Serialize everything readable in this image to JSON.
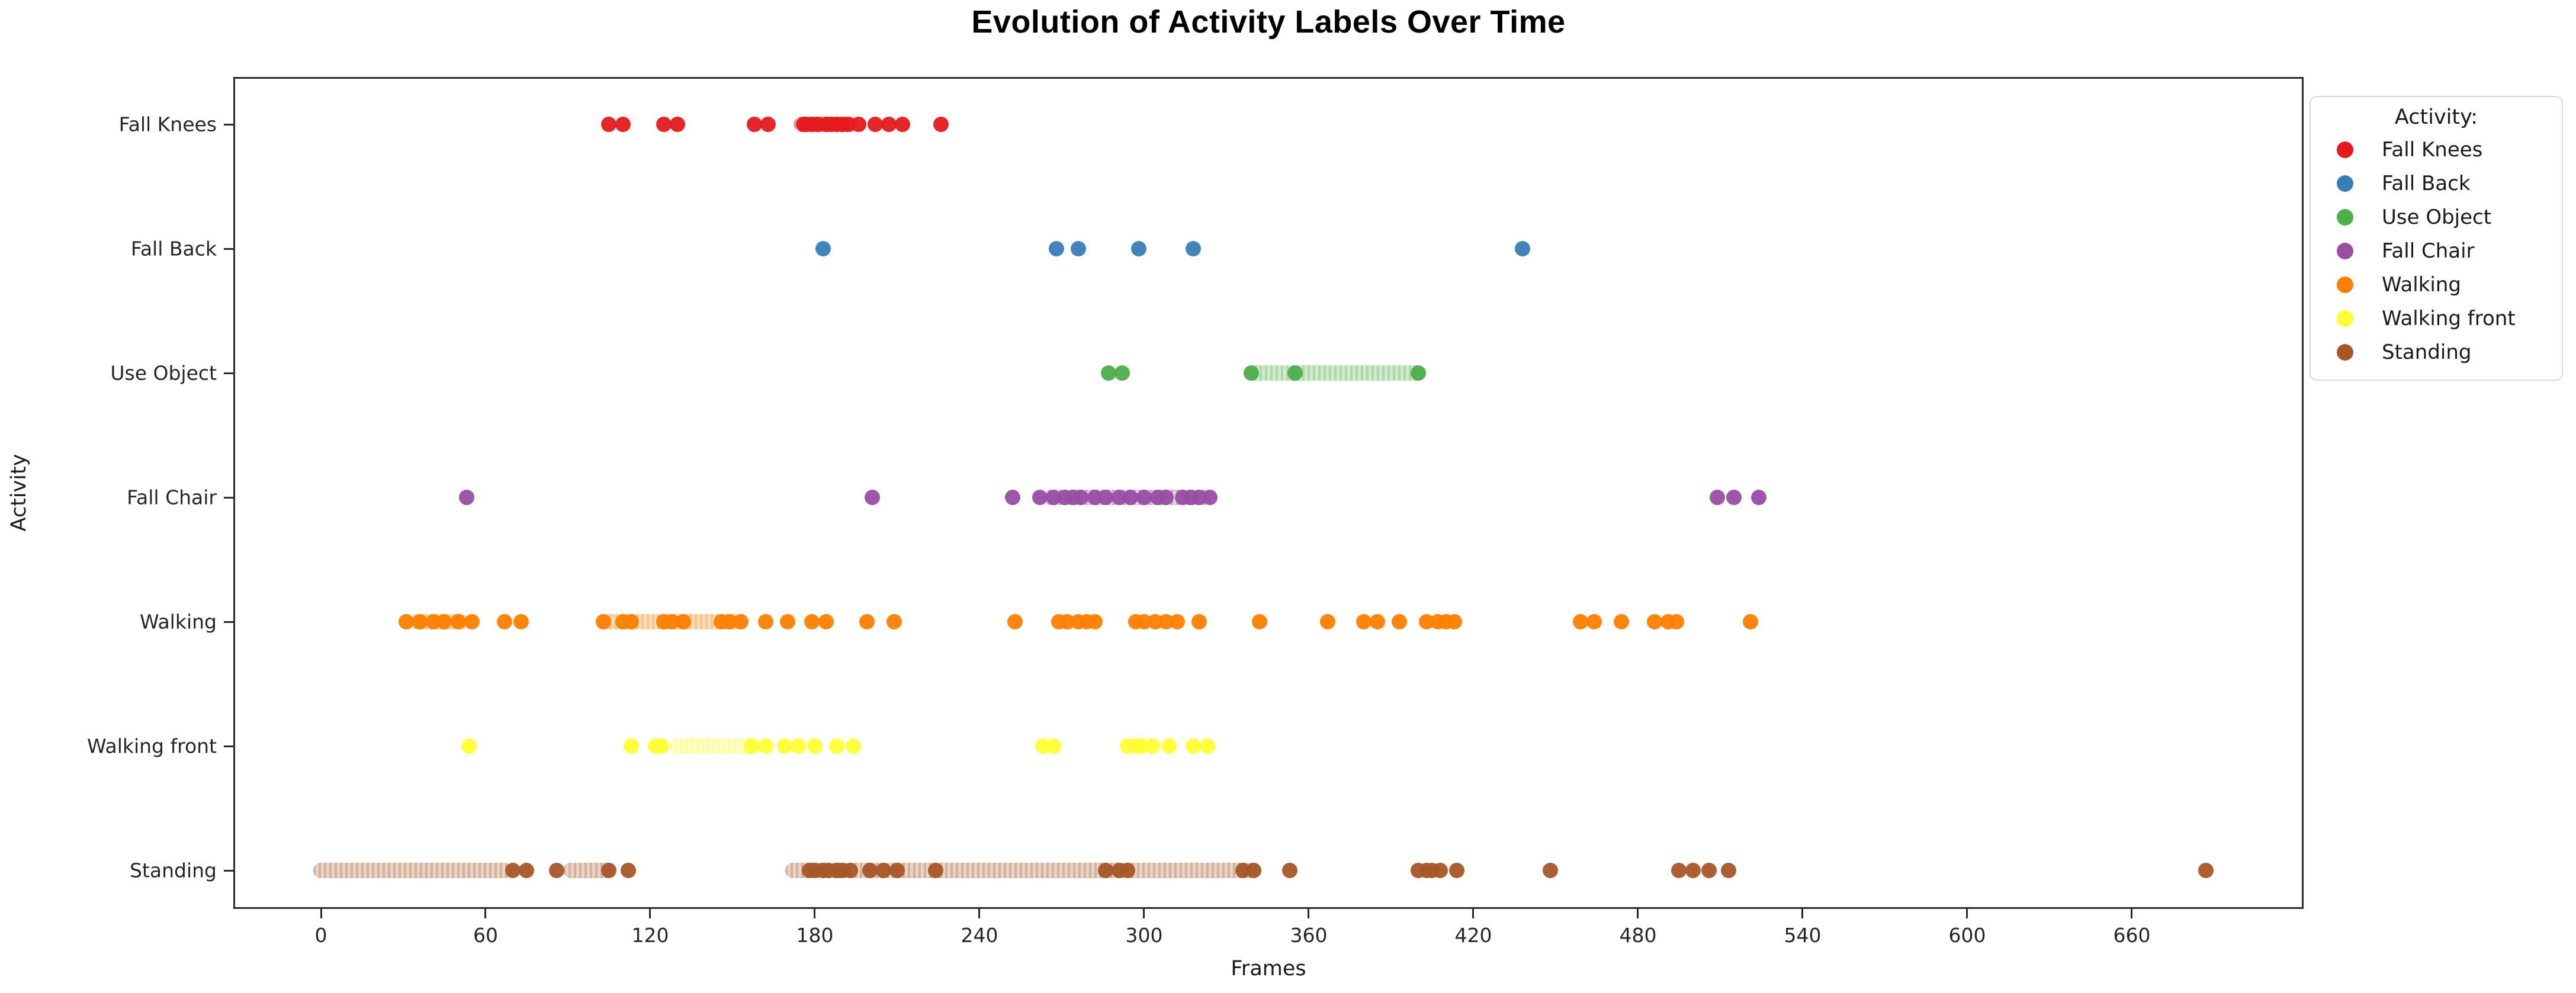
{
  "title": "Evolution of Activity Labels Over Time",
  "x_axis": {
    "label": "Frames",
    "ticks": [
      0,
      60,
      120,
      180,
      240,
      300,
      360,
      420,
      480,
      540,
      600,
      660
    ]
  },
  "y_axis": {
    "label": "Activity",
    "categories": [
      "Fall Knees",
      "Fall Back",
      "Use Object",
      "Fall Chair",
      "Walking",
      "Walking front",
      "Standing"
    ]
  },
  "legend": {
    "title": "Activity:",
    "items": [
      {
        "label": "Fall Knees",
        "color": "#e41a1c"
      },
      {
        "label": "Fall Back",
        "color": "#377eb8"
      },
      {
        "label": "Use Object",
        "color": "#4daf4a"
      },
      {
        "label": "Fall Chair",
        "color": "#984ea3"
      },
      {
        "label": "Walking",
        "color": "#ff7f00"
      },
      {
        "label": "Walking front",
        "color": "#ffff33"
      },
      {
        "label": "Standing",
        "color": "#a65628"
      }
    ]
  },
  "chart_data": {
    "type": "scatter",
    "title": "Evolution of Activity Labels Over Time",
    "xlabel": "Frames",
    "ylabel": "Activity",
    "xlim": [
      -35,
      725
    ],
    "grid": true,
    "legend_position": "upper right outside",
    "x_ticks": [
      0,
      60,
      120,
      180,
      240,
      300,
      360,
      420,
      480,
      540,
      600,
      660
    ],
    "categories_top_to_bottom": [
      "Fall Knees",
      "Fall Back",
      "Use Object",
      "Fall Chair",
      "Walking",
      "Walking front",
      "Standing"
    ],
    "series": [
      {
        "name": "Fall Knees",
        "color": "#e41a1c",
        "row": 0,
        "points": [
          105,
          110,
          125,
          130,
          158,
          163,
          176,
          177,
          179,
          181,
          184,
          186,
          188,
          190,
          192,
          196,
          202,
          207,
          212,
          226
        ],
        "runs": [
          [
            175,
            193
          ]
        ]
      },
      {
        "name": "Fall Back",
        "color": "#377eb8",
        "row": 1,
        "points": [
          183,
          268,
          276,
          298,
          318,
          438
        ],
        "runs": []
      },
      {
        "name": "Use Object",
        "color": "#4daf4a",
        "row": 2,
        "points": [
          287,
          292,
          339,
          355,
          400
        ],
        "runs": [
          [
            339,
            400
          ]
        ]
      },
      {
        "name": "Fall Chair",
        "color": "#984ea3",
        "row": 3,
        "points": [
          53,
          201,
          252,
          262,
          267,
          271,
          274,
          277,
          282,
          286,
          291,
          295,
          300,
          305,
          308,
          314,
          317,
          320,
          324,
          509,
          515,
          524
        ],
        "runs": [
          [
            266,
            322
          ]
        ]
      },
      {
        "name": "Walking",
        "color": "#ff7f00",
        "row": 4,
        "points": [
          31,
          36,
          41,
          45,
          50,
          55,
          67,
          73,
          103,
          110,
          113,
          125,
          128,
          132,
          146,
          149,
          153,
          162,
          170,
          179,
          184,
          199,
          209,
          253,
          269,
          272,
          276,
          279,
          282,
          297,
          300,
          304,
          308,
          312,
          320,
          342,
          367,
          380,
          385,
          393,
          403,
          407,
          410,
          413,
          459,
          464,
          474,
          486,
          491,
          494,
          521
        ],
        "runs": [
          [
            35,
            51
          ],
          [
            104,
            151
          ]
        ]
      },
      {
        "name": "Walking front",
        "color": "#ffff33",
        "row": 5,
        "points": [
          54,
          113,
          122,
          124,
          157,
          162,
          169,
          174,
          180,
          188,
          194,
          263,
          267,
          294,
          297,
          299,
          303,
          309,
          318,
          323
        ],
        "runs": [
          [
            130,
            156
          ]
        ]
      },
      {
        "name": "Standing",
        "color": "#a65628",
        "row": 6,
        "points": [
          70,
          75,
          86,
          105,
          112,
          178,
          180,
          183,
          185,
          188,
          190,
          193,
          200,
          205,
          210,
          224,
          286,
          291,
          294,
          336,
          340,
          353,
          400,
          403,
          405,
          408,
          414,
          448,
          495,
          500,
          506,
          513,
          687
        ],
        "runs": [
          [
            0,
            67
          ],
          [
            91,
            104
          ],
          [
            172,
            340
          ]
        ]
      }
    ]
  }
}
